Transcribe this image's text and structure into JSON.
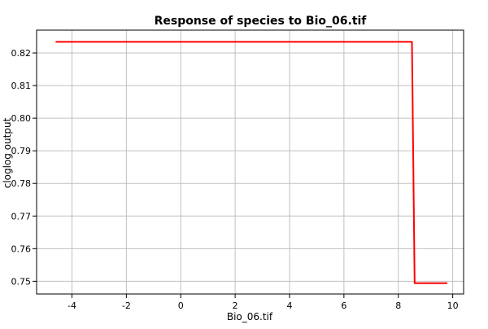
{
  "chart_data": {
    "type": "line",
    "title": "Response of species to Bio_06.tif",
    "xlabel": "Bio_06.tif",
    "ylabel": "cloglog output",
    "xlim": [
      -5.3,
      10.4
    ],
    "ylim": [
      0.7461,
      0.827
    ],
    "x_ticks": [
      -4,
      -2,
      0,
      2,
      4,
      6,
      8,
      10
    ],
    "y_ticks": [
      0.75,
      0.76,
      0.77,
      0.78,
      0.79,
      0.8,
      0.81,
      0.82
    ],
    "x_tick_labels": [
      "-4",
      "-2",
      "0",
      "2",
      "4",
      "6",
      "8",
      "10"
    ],
    "y_tick_labels": [
      "0.75",
      "0.76",
      "0.77",
      "0.78",
      "0.79",
      "0.80",
      "0.81",
      "0.82"
    ],
    "grid": true,
    "series": [
      {
        "color": "#ff0000",
        "x": [
          -4.6,
          8.5,
          8.6,
          9.8
        ],
        "y": [
          0.8234,
          0.8234,
          0.7494,
          0.7494
        ]
      }
    ]
  }
}
